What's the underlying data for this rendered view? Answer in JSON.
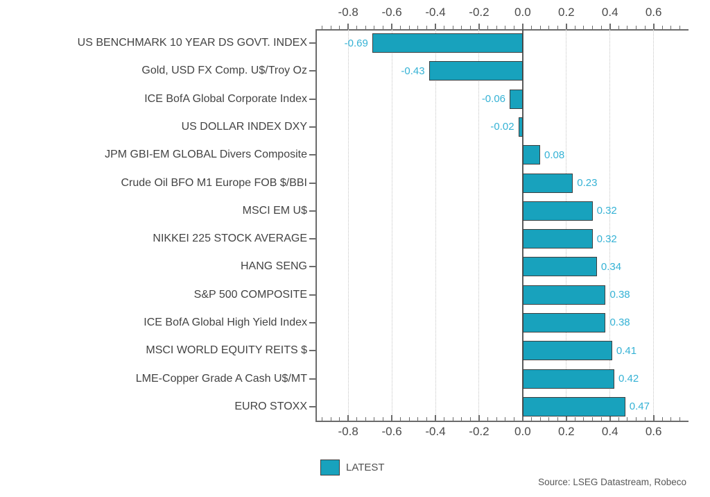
{
  "chart_data": {
    "type": "bar",
    "orientation": "horizontal",
    "title": "",
    "xlabel": "",
    "ylabel": "",
    "categories": [
      "US BENCHMARK 10 YEAR DS GOVT. INDEX",
      "Gold, USD FX Comp. U$/Troy Oz",
      "ICE BofA Global Corporate Index",
      "US DOLLAR INDEX DXY",
      "JPM GBI-EM GLOBAL Divers Composite",
      "Crude Oil BFO M1 Europe FOB $/BBI",
      "MSCI EM U$",
      "NIKKEI 225 STOCK AVERAGE",
      "HANG SENG",
      "S&P 500 COMPOSITE",
      "ICE BofA Global High Yield Index",
      "MSCI WORLD EQUITY REITS $",
      "LME-Copper Grade A Cash U$/MT",
      "EURO STOXX"
    ],
    "series": [
      {
        "name": "LATEST",
        "values": [
          -0.69,
          -0.43,
          -0.06,
          -0.02,
          0.08,
          0.23,
          0.32,
          0.32,
          0.34,
          0.38,
          0.38,
          0.41,
          0.42,
          0.47
        ],
        "value_labels": [
          "-0.69",
          "-0.43",
          "-0.06",
          "-0.02",
          "0.08",
          "0.23",
          "0.32",
          "0.32",
          "0.34",
          "0.38",
          "0.38",
          "0.41",
          "0.42",
          "0.47"
        ]
      }
    ],
    "x_ticks": [
      -0.8,
      -0.6,
      -0.4,
      -0.2,
      0.0,
      0.2,
      0.4,
      0.6
    ],
    "x_tick_labels": [
      "-0.8",
      "-0.6",
      "-0.4",
      "-0.2",
      "0.0",
      "0.2",
      "0.4",
      "0.6"
    ],
    "xlim": [
      -0.95,
      0.76
    ],
    "minor_tick_step": 0.04,
    "grid": "vertical dotted gridlines at major ticks, solid line at zero",
    "axis_label_positions": [
      "top",
      "bottom"
    ],
    "legend_position": "bottom-left"
  },
  "legend": {
    "label": "LATEST"
  },
  "source": {
    "text": "Source: LSEG Datastream, Robeco"
  },
  "colors": {
    "bar_fill": "#18a2bd",
    "bar_border": "#3f3f3f",
    "value_label": "#35b2d5",
    "axis_line": "#6b6b6b",
    "tick_label": "#4a4a4a",
    "category_label": "#434343",
    "gridline": "#c4c4c4",
    "zero_line": "#5a5a5a",
    "legend_text": "#4f4f4f",
    "source_text": "#575757"
  }
}
